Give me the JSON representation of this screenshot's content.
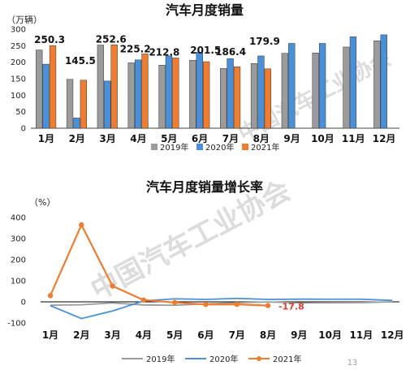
{
  "colors": {
    "y2019": "#9b9b9b",
    "y2020": "#4a90d9",
    "y2021": "#ef7d31",
    "grid": "#000000",
    "watermark": "#dcdcdc",
    "highlight_label": "#e23b2b"
  },
  "watermark_text": "中国汽车工业协会",
  "page_number": "13",
  "chart_data": [
    {
      "type": "bar",
      "title": "汽车月度销量",
      "unit_label": "（万辆）",
      "categories": [
        "1月",
        "2月",
        "3月",
        "4月",
        "5月",
        "6月",
        "7月",
        "8月",
        "9月",
        "10月",
        "11月",
        "12月"
      ],
      "ylim": [
        0,
        300
      ],
      "yticks": [
        0,
        50,
        100,
        150,
        200,
        250,
        300
      ],
      "legend_position": "bottom",
      "series": [
        {
          "name": "2019年",
          "values": [
            237,
            148,
            252,
            198,
            191,
            206,
            181,
            196,
            227,
            228,
            246,
            265
          ]
        },
        {
          "name": "2020年",
          "values": [
            194,
            31,
            143,
            207,
            219,
            230,
            211,
            219,
            257,
            257,
            277,
            283
          ]
        },
        {
          "name": "2021年",
          "values": [
            250.3,
            145.5,
            252.6,
            225.2,
            212.8,
            201.5,
            186.4,
            179.9,
            null,
            null,
            null,
            null
          ]
        }
      ],
      "data_labels_2021": [
        "250.3",
        "145.5",
        "252.6",
        "225.2",
        "212.8",
        "201.5",
        "186.4",
        "179.9"
      ]
    },
    {
      "type": "line",
      "title": "汽车月度销量增长率",
      "unit_label": "（%）",
      "categories": [
        "1月",
        "2月",
        "3月",
        "4月",
        "5月",
        "6月",
        "7月",
        "8月",
        "9月",
        "10月",
        "11月",
        "12月"
      ],
      "ylim": [
        -100,
        400
      ],
      "yticks": [
        -100,
        0,
        100,
        200,
        300,
        400
      ],
      "legend_position": "bottom",
      "series": [
        {
          "name": "2019年",
          "values": [
            -15.8,
            -13.8,
            -5.2,
            -14.6,
            -16.4,
            -9.6,
            -4.3,
            -0.6,
            -5.2,
            -4.0,
            -3.6,
            -0.1
          ]
        },
        {
          "name": "2020年",
          "values": [
            -18.0,
            -79.1,
            -43.3,
            4.4,
            14.5,
            11.6,
            16.4,
            11.6,
            12.8,
            12.5,
            12.6,
            6.4
          ]
        },
        {
          "name": "2021年",
          "values": [
            29.5,
            365.0,
            74.9,
            8.6,
            -3.1,
            -12.4,
            -11.9,
            -17.8,
            null,
            null,
            null,
            null
          ]
        }
      ],
      "annotation": "-17.8"
    }
  ]
}
